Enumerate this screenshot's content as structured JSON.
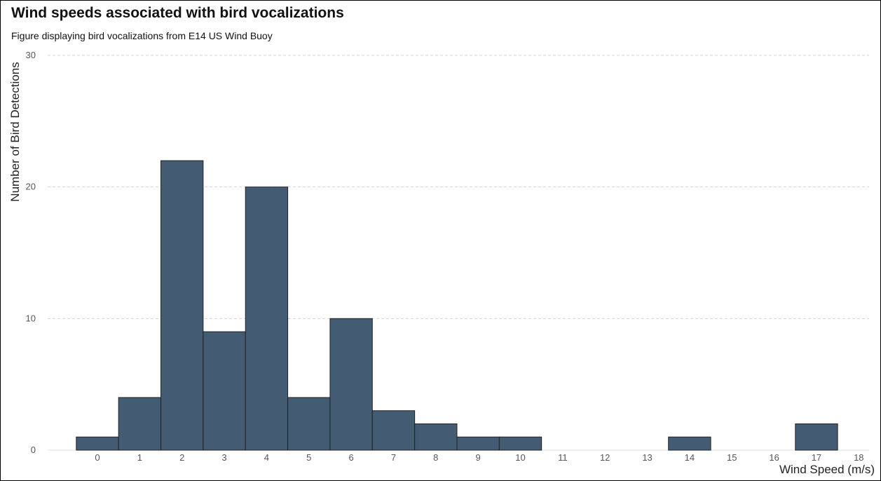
{
  "header": {
    "title": "Wind speeds associated with bird vocalizations",
    "subtitle": "Figure displaying bird vocalizations from E14 US Wind Buoy"
  },
  "colors": {
    "bar_fill": "#445c73",
    "bar_stroke": "#222222",
    "grid": "#d4d4d4"
  },
  "chart_data": {
    "type": "bar",
    "title": "Wind speeds associated with bird vocalizations",
    "subtitle": "Figure displaying bird vocalizations from E14 US Wind Buoy",
    "xlabel": "Wind Speed (m/s)",
    "ylabel": "Number of Bird Detections",
    "categories": [
      "0",
      "1",
      "2",
      "3",
      "4",
      "5",
      "6",
      "7",
      "8",
      "9",
      "10",
      "11",
      "12",
      "13",
      "14",
      "15",
      "16",
      "17",
      "18"
    ],
    "values": [
      1,
      4,
      22,
      9,
      20,
      4,
      10,
      3,
      2,
      1,
      1,
      0,
      0,
      0,
      1,
      0,
      0,
      2,
      0
    ],
    "ylim": [
      0,
      30
    ],
    "yticks": [
      0,
      10,
      20,
      30
    ],
    "grid": "horizontal dashed",
    "legend": "none"
  }
}
